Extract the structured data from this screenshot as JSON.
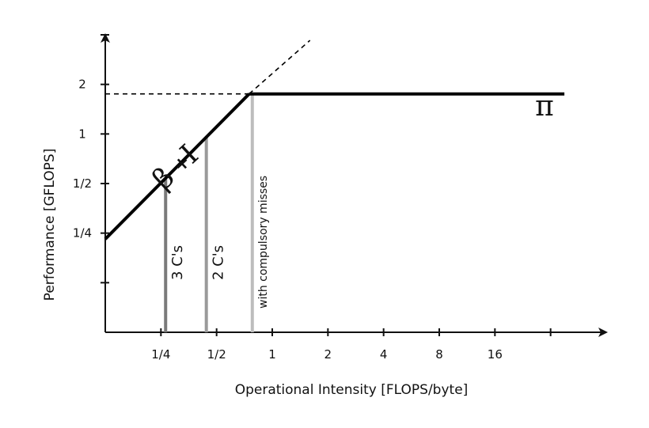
{
  "chart_data": {
    "type": "line",
    "title": "",
    "xlabel": "Operational Intensity [FLOPS/byte]",
    "ylabel": "Performance [GFLOPS]",
    "x_scale": "log2",
    "y_scale": "log2",
    "xlim": [
      0.125,
      64
    ],
    "ylim": [
      0.0625,
      4
    ],
    "x_ticks": [
      0.25,
      0.5,
      1,
      2,
      4,
      8,
      16,
      32
    ],
    "x_tick_labels": [
      "1/4",
      "1/2",
      "1",
      "2",
      "4",
      "8",
      "16",
      ""
    ],
    "y_ticks": [
      0.125,
      0.25,
      0.5,
      1,
      2,
      4
    ],
    "y_tick_labels": [
      "",
      "1/4",
      "1/2",
      "1",
      "2",
      ""
    ],
    "series": [
      {
        "role": "memory-bound roof",
        "points": [
          [
            0.125,
            0.23
          ],
          [
            0.75,
            1.75
          ]
        ],
        "color": "#000000",
        "style": "solid"
      },
      {
        "role": "compute-bound roof",
        "points": [
          [
            0.75,
            1.75
          ],
          [
            38,
            1.75
          ]
        ],
        "color": "#000000",
        "style": "solid"
      },
      {
        "role": "bandwidth extension",
        "points": [
          [
            0.75,
            1.75
          ],
          [
            1.6,
            3.7
          ]
        ],
        "color": "#000000",
        "style": "dashed"
      },
      {
        "role": "peak reference",
        "points": [
          [
            0.125,
            1.75
          ],
          [
            0.75,
            1.75
          ]
        ],
        "color": "#000000",
        "style": "dashed"
      }
    ],
    "annotations": {
      "pi_label": "π",
      "beta_label": "β",
      "plus": "+",
      "intensity_label": "I"
    },
    "vertical_lines": [
      {
        "x": 0.265,
        "label": "3 C's",
        "color": "#7a7a7a"
      },
      {
        "x": 0.44,
        "label": "2 C's",
        "color": "#9a9a9a"
      },
      {
        "x": 0.78,
        "label": "with compulsory misses",
        "color": "#bdbdbd"
      }
    ],
    "grid": false,
    "legend": "none"
  }
}
